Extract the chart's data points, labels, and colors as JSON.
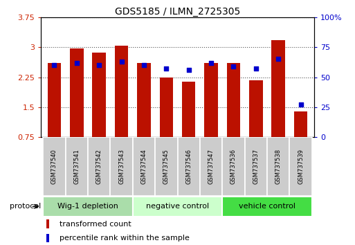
{
  "title": "GDS5185 / ILMN_2725305",
  "samples": [
    "GSM737540",
    "GSM737541",
    "GSM737542",
    "GSM737543",
    "GSM737544",
    "GSM737545",
    "GSM737546",
    "GSM737547",
    "GSM737536",
    "GSM737537",
    "GSM737538",
    "GSM737539"
  ],
  "bar_values": [
    2.6,
    2.97,
    2.87,
    3.04,
    2.6,
    2.25,
    2.13,
    2.6,
    2.6,
    2.17,
    3.18,
    1.4
  ],
  "percentile_values": [
    60,
    62,
    60,
    63,
    60,
    57,
    56,
    62,
    59,
    57,
    65,
    27
  ],
  "ylim_left": [
    0.75,
    3.75
  ],
  "ylim_right": [
    0,
    100
  ],
  "yticks_left": [
    0.75,
    1.5,
    2.25,
    3.0,
    3.75
  ],
  "ytick_labels_left": [
    "0.75",
    "1.5",
    "2.25",
    "3",
    "3.75"
  ],
  "yticks_right": [
    0,
    25,
    50,
    75,
    100
  ],
  "ytick_labels_right": [
    "0",
    "25",
    "50",
    "75",
    "100%"
  ],
  "groups": [
    {
      "label": "Wig-1 depletion",
      "start": 0,
      "end": 3
    },
    {
      "label": "negative control",
      "start": 4,
      "end": 7
    },
    {
      "label": "vehicle control",
      "start": 8,
      "end": 11
    }
  ],
  "bar_color": "#bb1100",
  "dot_color": "#0000cc",
  "group_colors": [
    "#aaddaa",
    "#ccffcc",
    "#44dd44"
  ],
  "label_box_color": "#cccccc",
  "protocol_label": "protocol",
  "legend_bar_label": "transformed count",
  "legend_dot_label": "percentile rank within the sample",
  "bar_width": 0.6,
  "title_fontsize": 10,
  "tick_fontsize": 8,
  "sample_fontsize": 6,
  "group_fontsize": 8,
  "legend_fontsize": 8,
  "axis_label_color_left": "#cc2200",
  "axis_label_color_right": "#0000cc"
}
